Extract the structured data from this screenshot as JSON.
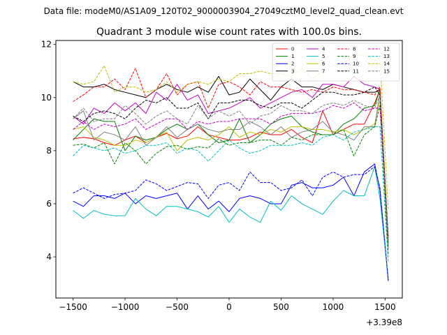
{
  "figure": {
    "suptitle": "Data file: modeM0/AS1A09_120T02_9000003904_27049cztM0_level2_quad_clean.evt"
  },
  "chart_data": {
    "type": "line",
    "title": "Quadrant 3 module wise count rates with 100.0s bins.",
    "xlabel": "",
    "ylabel": "",
    "x_offset_label": "+3.39e8",
    "xlim": [
      -1665,
      1665
    ],
    "ylim": [
      2.45,
      12.15
    ],
    "xticks": [
      -1500,
      -1000,
      -500,
      0,
      500,
      1000,
      1500
    ],
    "yticks": [
      4,
      6,
      8,
      10,
      12
    ],
    "legend_location": "top-right",
    "legend_columns": 4,
    "x": [
      -1500,
      -1400,
      -1300,
      -1200,
      -1100,
      -1000,
      -900,
      -800,
      -700,
      -600,
      -500,
      -400,
      -300,
      -200,
      -100,
      0,
      100,
      200,
      300,
      400,
      500,
      600,
      700,
      800,
      900,
      1000,
      1100,
      1200,
      1300,
      1400,
      1450,
      1530
    ],
    "series": [
      {
        "name": "0",
        "color": "#ff0000",
        "dash": "solid",
        "values": [
          8.45,
          8.5,
          8.45,
          8.3,
          8.2,
          8.4,
          8.55,
          8.3,
          8.5,
          8.65,
          8.45,
          8.55,
          8.9,
          8.6,
          8.5,
          8.4,
          8.4,
          8.5,
          8.7,
          8.6,
          8.6,
          8.8,
          8.5,
          8.3,
          9.5,
          8.6,
          8.8,
          9.0,
          9.0,
          9.8,
          10.3,
          4.7
        ]
      },
      {
        "name": "1",
        "color": "#008000",
        "dash": "solid",
        "values": [
          8.4,
          8.8,
          9.2,
          9.1,
          9.1,
          8.0,
          8.55,
          8.4,
          8.5,
          8.8,
          9.0,
          8.8,
          9.0,
          8.6,
          8.3,
          8.4,
          9.2,
          8.3,
          8.6,
          9.0,
          9.2,
          9.3,
          8.9,
          8.7,
          8.6,
          8.6,
          9.0,
          9.2,
          9.6,
          9.7,
          10.3,
          4.5
        ]
      },
      {
        "name": "2",
        "color": "#0000ff",
        "dash": "solid",
        "values": [
          6.1,
          5.9,
          6.3,
          6.3,
          6.2,
          6.4,
          6.0,
          6.3,
          6.2,
          6.3,
          6.4,
          5.8,
          6.3,
          5.8,
          6.1,
          5.7,
          6.2,
          6.3,
          6.2,
          6.0,
          6.0,
          6.7,
          6.8,
          6.6,
          6.6,
          6.7,
          7.0,
          6.3,
          7.2,
          7.5,
          6.5,
          3.1
        ]
      },
      {
        "name": "3",
        "color": "#000000",
        "dash": "solid",
        "values": [
          10.6,
          10.4,
          10.4,
          10.5,
          10.3,
          10.2,
          10.1,
          10.0,
          10.3,
          10.5,
          10.3,
          10.2,
          10.4,
          10.2,
          10.8,
          10.1,
          10.2,
          10.7,
          10.3,
          9.9,
          10.4,
          10.7,
          10.4,
          10.4,
          10.3,
          10.5,
          10.4,
          10.3,
          10.2,
          10.2,
          10.3,
          4.6
        ]
      },
      {
        "name": "4",
        "color": "#c000c0",
        "dash": "solid",
        "values": [
          9.3,
          9.0,
          9.6,
          9.4,
          9.8,
          9.5,
          9.8,
          9.4,
          10.2,
          9.9,
          10.5,
          9.9,
          10.1,
          9.4,
          9.5,
          9.6,
          9.8,
          10.0,
          9.6,
          9.8,
          10.0,
          10.2,
          10.3,
          10.0,
          10.5,
          10.5,
          10.4,
          10.8,
          10.5,
          10.4,
          10.3,
          4.3
        ]
      },
      {
        "name": "5",
        "color": "#00c0c0",
        "dash": "solid",
        "values": [
          5.75,
          5.45,
          5.75,
          5.6,
          5.55,
          5.55,
          6.2,
          5.8,
          5.55,
          5.9,
          5.9,
          5.8,
          5.7,
          5.5,
          5.9,
          5.3,
          5.8,
          5.5,
          5.3,
          6.1,
          5.75,
          6.3,
          6.0,
          5.8,
          5.6,
          6.1,
          6.5,
          6.3,
          6.3,
          7.4,
          6.2,
          3.2
        ]
      },
      {
        "name": "6",
        "color": "#c0c000",
        "dash": "solid",
        "values": [
          8.8,
          8.9,
          8.5,
          8.4,
          8.2,
          8.2,
          8.4,
          8.3,
          8.5,
          8.7,
          8.0,
          8.4,
          8.5,
          8.4,
          8.6,
          8.9,
          8.5,
          8.7,
          8.6,
          8.8,
          8.7,
          8.9,
          8.9,
          8.8,
          8.8,
          8.7,
          8.8,
          8.6,
          8.8,
          9.0,
          9.9,
          4.3
        ]
      },
      {
        "name": "7",
        "color": "#808080",
        "dash": "solid",
        "values": [
          9.2,
          9.5,
          8.4,
          8.7,
          8.6,
          8.4,
          8.9,
          8.2,
          8.5,
          8.9,
          8.5,
          8.8,
          9.0,
          8.8,
          8.7,
          8.8,
          8.8,
          9.1,
          8.9,
          8.6,
          8.9,
          8.5,
          8.7,
          8.8,
          9.1,
          8.7,
          8.6,
          8.4,
          8.9,
          8.9,
          10.2,
          4.4
        ]
      },
      {
        "name": "8",
        "color": "#ff0000",
        "dash": "dashed",
        "values": [
          9.85,
          10.1,
          10.4,
          10.4,
          10.7,
          10.3,
          11.1,
          10.0,
          10.3,
          10.9,
          10.1,
          10.5,
          10.6,
          9.6,
          10.5,
          10.6,
          10.4,
          10.1,
          10.6,
          10.4,
          10.4,
          10.3,
          10.2,
          10.3,
          10.2,
          10.4,
          10.3,
          10.3,
          10.2,
          10.1,
          10.4,
          4.5
        ]
      },
      {
        "name": "9",
        "color": "#008000",
        "dash": "dashed",
        "values": [
          8.2,
          8.25,
          8.1,
          8.3,
          7.5,
          8.3,
          8.0,
          7.5,
          7.9,
          8.15,
          8.2,
          8.05,
          8.15,
          8.1,
          8.45,
          8.2,
          8.3,
          8.3,
          8.4,
          8.4,
          8.2,
          8.5,
          8.4,
          8.6,
          8.6,
          8.6,
          8.8,
          7.8,
          8.6,
          8.9,
          9.7,
          4.1
        ]
      },
      {
        "name": "10",
        "color": "#0000ff",
        "dash": "dashed",
        "values": [
          6.4,
          6.6,
          6.4,
          6.2,
          6.35,
          6.4,
          6.5,
          6.9,
          6.75,
          6.5,
          6.65,
          6.8,
          6.75,
          6.2,
          6.7,
          6.8,
          6.5,
          7.2,
          6.8,
          6.8,
          6.5,
          6.6,
          6.9,
          6.3,
          7.0,
          7.2,
          7.0,
          7.1,
          7.1,
          7.4,
          6.6,
          3.1
        ]
      },
      {
        "name": "11",
        "color": "#000000",
        "dash": "dashed",
        "values": [
          9.3,
          9.1,
          9.4,
          9.5,
          9.4,
          9.2,
          9.6,
          9.9,
          9.8,
          10.0,
          9.6,
          9.6,
          9.8,
          9.2,
          9.8,
          9.8,
          9.9,
          9.9,
          9.7,
          9.6,
          9.8,
          9.8,
          9.6,
          9.9,
          10.2,
          10.2,
          10.1,
          10.1,
          10.2,
          10.4,
          10.1,
          4.7
        ]
      },
      {
        "name": "12",
        "color": "#c000c0",
        "dash": "dashed",
        "values": [
          8.8,
          9.1,
          8.8,
          9.0,
          8.9,
          9.0,
          9.2,
          8.8,
          9.0,
          9.2,
          9.2,
          8.8,
          9.1,
          9.0,
          9.1,
          9.1,
          9.2,
          9.2,
          9.2,
          9.0,
          9.3,
          9.4,
          9.4,
          9.4,
          9.5,
          9.7,
          9.6,
          9.8,
          9.5,
          9.6,
          9.6,
          4.8
        ]
      },
      {
        "name": "13",
        "color": "#00c0c0",
        "dash": "dashed",
        "values": [
          7.8,
          8.2,
          8.1,
          8.0,
          8.1,
          7.9,
          8.0,
          8.2,
          8.2,
          8.3,
          7.9,
          8.1,
          8.0,
          7.6,
          8.0,
          8.4,
          8.1,
          7.9,
          8.0,
          8.2,
          8.2,
          8.2,
          8.3,
          8.2,
          8.5,
          8.6,
          8.4,
          8.7,
          8.8,
          8.9,
          8.9,
          3.8
        ]
      },
      {
        "name": "14",
        "color": "#c0c000",
        "dash": "dashed",
        "values": [
          10.6,
          10.5,
          10.6,
          11.2,
          10.2,
          10.4,
          10.4,
          10.2,
          10.3,
          10.6,
          10.2,
          10.5,
          10.6,
          10.5,
          10.7,
          10.6,
          10.9,
          10.9,
          11.0,
          10.9,
          10.9,
          10.8,
          11.1,
          10.7,
          11.0,
          11.2,
          11.3,
          11.6,
          11.6,
          11.4,
          11.5,
          5.8
        ]
      },
      {
        "name": "15",
        "color": "#808080",
        "dash": "dashed",
        "values": [
          9.2,
          9.6,
          9.1,
          9.2,
          9.2,
          9.7,
          9.4,
          9.0,
          9.3,
          9.5,
          9.2,
          9.0,
          9.7,
          9.2,
          9.5,
          9.3,
          9.5,
          9.0,
          9.3,
          9.4,
          9.7,
          9.5,
          9.5,
          9.4,
          9.7,
          9.8,
          9.7,
          9.9,
          9.7,
          9.6,
          10.1,
          4.6
        ]
      }
    ]
  }
}
